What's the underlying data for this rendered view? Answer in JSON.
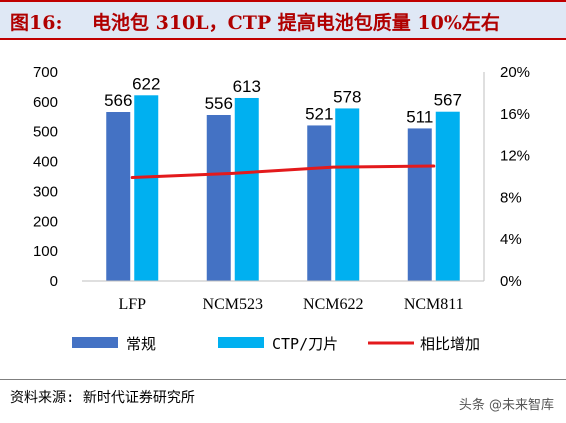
{
  "figure": {
    "label": "图16:",
    "title": "电池包 310L，CTP 提高电池包质量 10%左右"
  },
  "chart_data": {
    "type": "bar",
    "categories": [
      "LFP",
      "NCM523",
      "NCM622",
      "NCM811"
    ],
    "series": [
      {
        "name": "常规",
        "type": "bar",
        "axis": "left",
        "color": "#4472c4",
        "values": [
          566,
          556,
          521,
          511
        ]
      },
      {
        "name": "CTP/刀片",
        "type": "bar",
        "axis": "left",
        "color": "#00b0f0",
        "values": [
          622,
          613,
          578,
          567
        ]
      },
      {
        "name": "相比增加",
        "type": "line",
        "axis": "right",
        "color": "#e31a1c",
        "values": [
          0.099,
          0.103,
          0.109,
          0.11
        ]
      }
    ],
    "y_left": {
      "min": 0,
      "max": 700,
      "step": 100,
      "ticks": [
        "0",
        "100",
        "200",
        "300",
        "400",
        "500",
        "600",
        "700"
      ]
    },
    "y_right": {
      "min": 0,
      "max": 0.2,
      "step": 0.04,
      "ticks": [
        "0%",
        "4%",
        "8%",
        "12%",
        "16%",
        "20%"
      ]
    },
    "grid": false,
    "legend_position": "bottom"
  },
  "source": "资料来源: 新时代证券研究所",
  "watermark": "头条 @未来智库"
}
